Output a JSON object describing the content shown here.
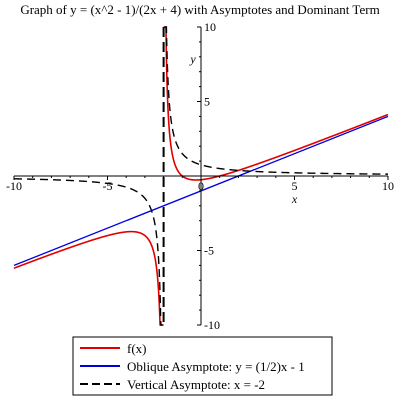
{
  "chart_data": {
    "type": "line",
    "title": "Graph of y = (x^2 - 1)/(2x + 4) with Asymptotes and Dominant Term",
    "xlabel": "x",
    "ylabel": "y",
    "xlim": [
      -10,
      10
    ],
    "ylim": [
      -10,
      10
    ],
    "x_ticks": [
      -10,
      -5,
      0,
      5,
      10
    ],
    "y_ticks": [
      -10,
      -5,
      5,
      10
    ],
    "x_tick_labels": [
      "-10",
      "-5",
      "0",
      "5",
      "10"
    ],
    "y_tick_labels": [
      "-10",
      "-5",
      "5",
      "10"
    ],
    "grid": false,
    "legend_position": "bottom",
    "series": [
      {
        "name": "f(x)",
        "color": "#e00000",
        "dash": "solid",
        "kind": "function",
        "formula": "(x^2 - 1)/(2x + 4)",
        "domain": [
          -10,
          10
        ],
        "discontinuity": -2
      },
      {
        "name": "Oblique Asymptote: y = (1/2)x - 1",
        "color": "#0000dd",
        "dash": "solid",
        "kind": "line",
        "points": [
          [
            -10,
            -6
          ],
          [
            10,
            4
          ]
        ]
      },
      {
        "name": "Vertical Asymptote: x = -2",
        "color": "#000000",
        "dash": "dashed",
        "kind": "vertical",
        "x": -2
      }
    ]
  }
}
